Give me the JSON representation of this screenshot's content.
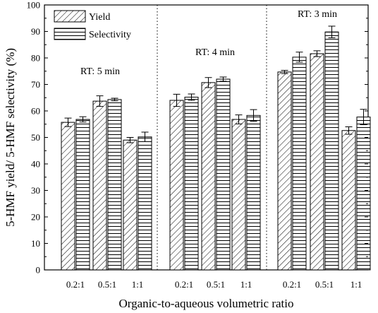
{
  "chart_data": {
    "type": "bar",
    "xlabel": "Organic-to-aqueous volumetric ratio",
    "ylabel": "5-HMF yield/ 5-HMF selectivity (%)",
    "ylim": [
      0,
      100
    ],
    "yticks": [
      0,
      10,
      20,
      30,
      40,
      50,
      60,
      70,
      80,
      90,
      100
    ],
    "grid": false,
    "legend_position": "top-left",
    "series": [
      {
        "name": "Yield",
        "pattern": "diagonal-hatch"
      },
      {
        "name": "Selectivity",
        "pattern": "horizontal-hatch"
      }
    ],
    "groups": [
      {
        "annotation": "RT: 5 min",
        "categories": [
          "0.2:1",
          "0.5:1",
          "1:1"
        ],
        "yield": [
          55.7,
          63.7,
          49.0
        ],
        "yield_err": [
          1.6,
          2.0,
          1.0
        ],
        "selectivity": [
          56.8,
          64.3,
          50.2
        ],
        "selectivity_err": [
          1.0,
          0.5,
          1.8
        ]
      },
      {
        "annotation": "RT: 4 min",
        "categories": [
          "0.2:1",
          "0.5:1",
          "1:1"
        ],
        "yield": [
          64.0,
          70.7,
          56.8
        ],
        "yield_err": [
          2.3,
          1.9,
          1.7
        ],
        "selectivity": [
          65.2,
          72.0,
          58.3
        ],
        "selectivity_err": [
          1.2,
          0.8,
          2.2
        ]
      },
      {
        "annotation": "RT: 3 min",
        "categories": [
          "0.2:1",
          "0.5:1",
          "1:1"
        ],
        "yield": [
          74.7,
          81.6,
          52.6
        ],
        "yield_err": [
          0.6,
          1.1,
          1.4
        ],
        "selectivity": [
          80.3,
          89.8,
          57.7
        ],
        "selectivity_err": [
          1.9,
          2.2,
          2.9
        ]
      }
    ]
  }
}
